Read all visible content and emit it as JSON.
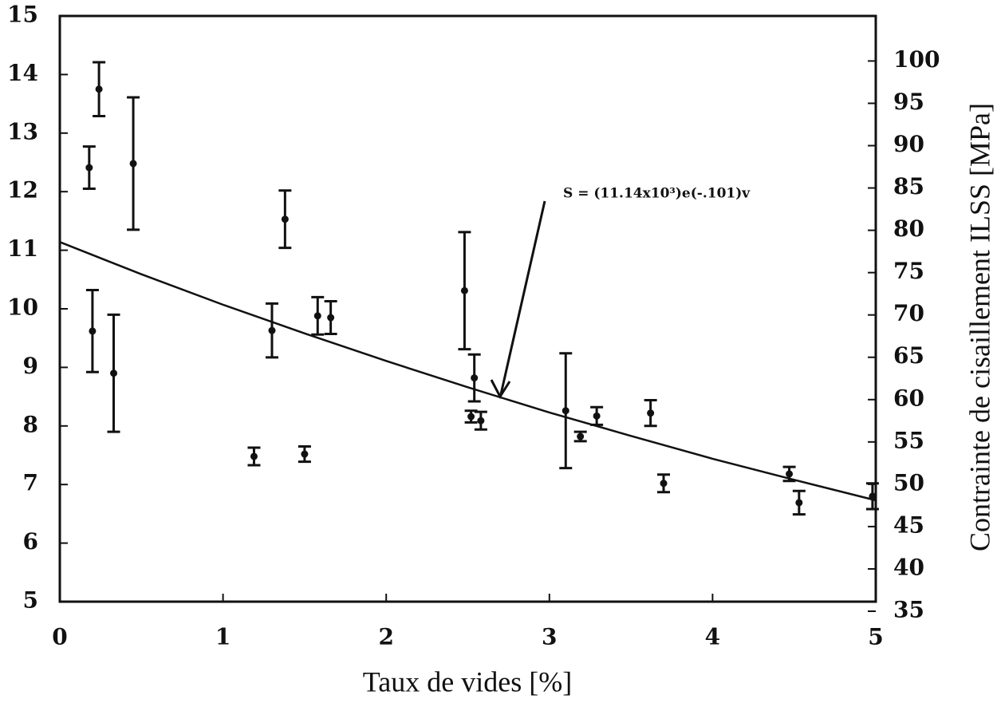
{
  "chart_data": {
    "type": "errorbar",
    "xlabel": "Taux de vides [%]",
    "y2label": "Contrainte de cisaillement ILSS [MPa]",
    "annotation": "S = (11.14x10³)e(-.101)v",
    "xlim": [
      0,
      5
    ],
    "xticks": [
      0,
      1,
      2,
      3,
      4,
      5
    ],
    "ylim": [
      5,
      15
    ],
    "yticks": [
      5,
      6,
      7,
      8,
      9,
      10,
      11,
      12,
      13,
      14,
      15
    ],
    "y2lim": [
      35,
      104
    ],
    "y2ticks": [
      35,
      40,
      45,
      50,
      55,
      60,
      65,
      70,
      75,
      80,
      85,
      90,
      95,
      100
    ],
    "color": "#111111",
    "points": {
      "x": [
        0.18,
        0.24,
        0.45,
        0.2,
        0.33,
        1.19,
        1.3,
        1.38,
        1.5,
        1.58,
        1.66,
        2.48,
        2.54,
        2.52,
        2.58,
        3.1,
        3.19,
        3.29,
        3.62,
        3.7,
        4.47,
        4.53,
        4.98
      ],
      "values": [
        12.41,
        13.75,
        12.48,
        9.62,
        8.9,
        7.48,
        9.63,
        11.53,
        7.52,
        9.88,
        9.85,
        10.31,
        8.82,
        8.16,
        8.09,
        8.26,
        7.82,
        8.17,
        8.22,
        7.02,
        7.18,
        6.69,
        6.8
      ],
      "errors": [
        0.36,
        0.46,
        1.13,
        0.7,
        1.0,
        0.15,
        0.46,
        0.49,
        0.13,
        0.32,
        0.28,
        1.0,
        0.4,
        0.1,
        0.15,
        0.98,
        0.08,
        0.15,
        0.22,
        0.15,
        0.12,
        0.2,
        0.22
      ]
    },
    "fit": {
      "x": [
        0,
        0.5,
        1,
        1.5,
        2,
        2.5,
        3,
        3.5,
        4,
        4.5,
        5
      ],
      "values": [
        11.14,
        10.59,
        10.07,
        9.58,
        9.11,
        8.66,
        8.23,
        7.83,
        7.44,
        7.08,
        6.73
      ]
    }
  }
}
